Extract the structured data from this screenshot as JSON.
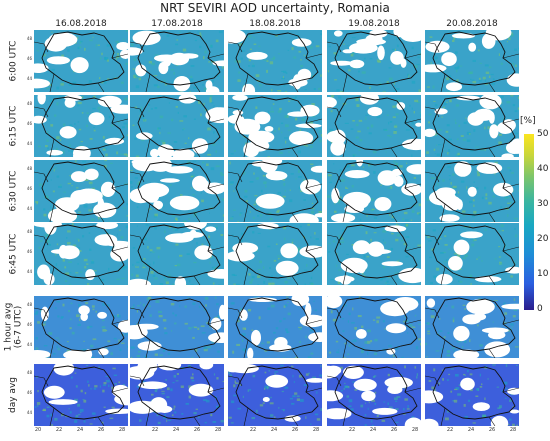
{
  "title": "NRT SEVIRI AOD uncertainty, Romania",
  "columns": [
    "16.08.2018",
    "17.08.2018",
    "18.08.2018",
    "19.08.2018",
    "20.08.2018"
  ],
  "rows": [
    {
      "label": "6:00 UTC",
      "label2": ""
    },
    {
      "label": "6:15 UTC",
      "label2": ""
    },
    {
      "label": "6:30 UTC",
      "label2": ""
    },
    {
      "label": "6:45 UTC",
      "label2": ""
    },
    {
      "label": "1 hour avg",
      "label2": "(6-7 UTC)"
    },
    {
      "label": "day avg",
      "label2": ""
    }
  ],
  "colorbar": {
    "unit": "[%]",
    "ticks": [
      "50",
      "40",
      "30",
      "20",
      "10",
      "0"
    ],
    "min": 0,
    "max": 50,
    "colors": [
      "#2a1d8c",
      "#2b5fe0",
      "#1e8ed6",
      "#19a8c2",
      "#3bb6a0",
      "#7ec66a",
      "#c9d63a",
      "#fbe51f"
    ]
  },
  "map": {
    "lat_ticks": [
      "48",
      "46",
      "44"
    ],
    "lon_ticks": [
      "20",
      "22",
      "24",
      "26",
      "28"
    ],
    "border_color": "#111111",
    "no_data_color": "#ffffff",
    "row_base_colors": [
      "#3aa3c9",
      "#3aa3c9",
      "#3aa3c9",
      "#3aa3c9",
      "#3f8fd6",
      "#3d5fdc"
    ]
  }
}
